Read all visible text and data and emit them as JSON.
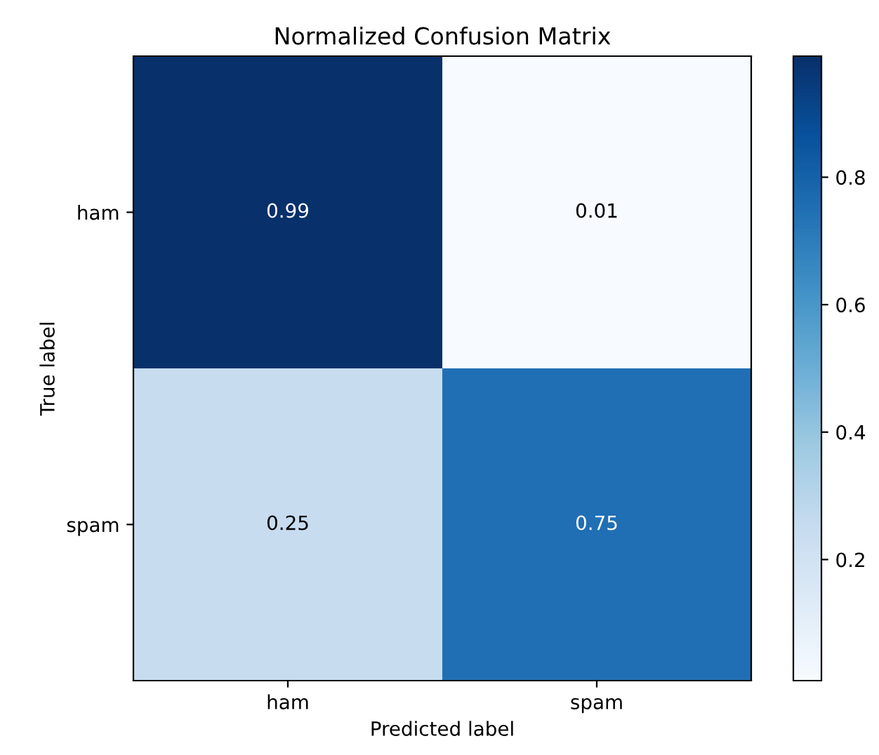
{
  "chart_data": {
    "type": "heatmap",
    "title": "Normalized Confusion Matrix",
    "xlabel": "Predicted label",
    "ylabel": "True label",
    "categories": [
      "ham",
      "spam"
    ],
    "y_categories": [
      "ham",
      "spam"
    ],
    "cells": [
      [
        0.99,
        0.01
      ],
      [
        0.25,
        0.75
      ]
    ],
    "data_labels": true,
    "clim": [
      0.01,
      0.99
    ],
    "cticks": [
      0.2,
      0.4,
      0.6,
      0.8
    ]
  }
}
